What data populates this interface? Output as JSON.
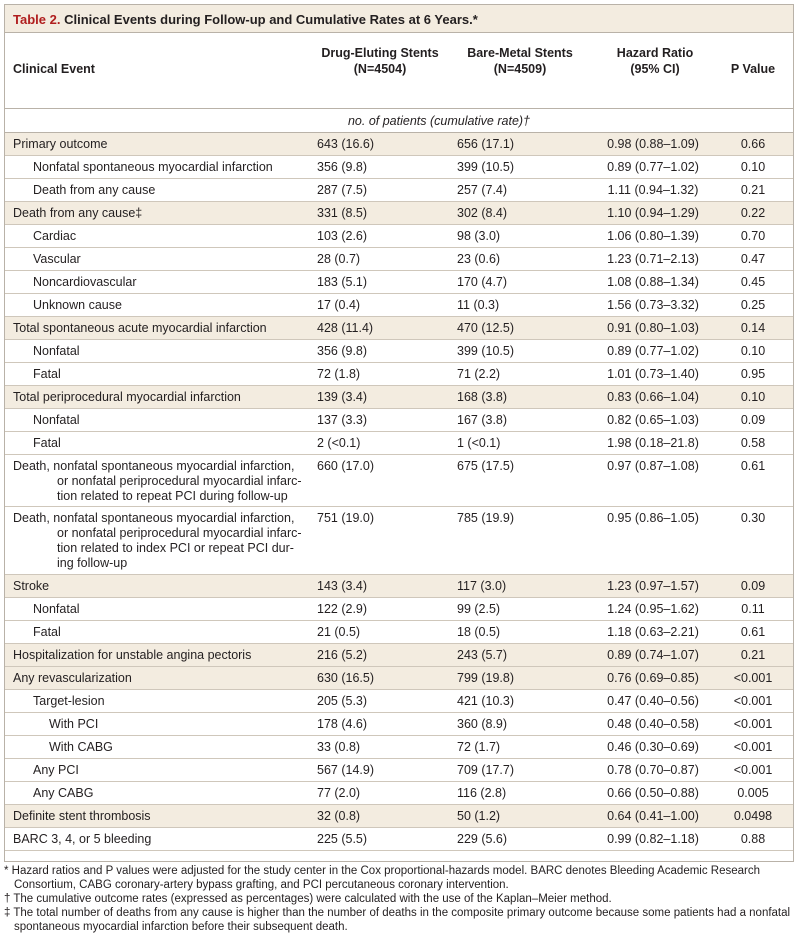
{
  "table": {
    "label": "Table 2.",
    "title": "Clinical Events during Follow-up and Cumulative Rates at 6 Years.*",
    "headers": {
      "event": "Clinical Event",
      "des_line1": "Drug-Eluting Stents",
      "des_line2": "(N=4504)",
      "bms_line1": "Bare-Metal Stents",
      "bms_line2": "(N=4509)",
      "hr_line1": "Hazard Ratio",
      "hr_line2": "(95% CI)",
      "p": "P Value"
    },
    "subheader": "no. of patients (cumulative rate)†",
    "rows": [
      {
        "event": "Primary outcome",
        "des": "643 (16.6)",
        "bms": "656 (17.1)",
        "hr": "0.98 (0.88–1.09)",
        "p": "0.66"
      },
      {
        "event": "Nonfatal spontaneous myocardial infarction",
        "des": "356 (9.8)",
        "bms": "399 (10.5)",
        "hr": "0.89 (0.77–1.02)",
        "p": "0.10"
      },
      {
        "event": "Death from any cause",
        "des": "287 (7.5)",
        "bms": "257 (7.4)",
        "hr": "1.11 (0.94–1.32)",
        "p": "0.21"
      },
      {
        "event": "Death from any cause‡",
        "des": "331 (8.5)",
        "bms": "302 (8.4)",
        "hr": "1.10 (0.94–1.29)",
        "p": "0.22"
      },
      {
        "event": "Cardiac",
        "des": "103 (2.6)",
        "bms": "98 (3.0)",
        "hr": "1.06 (0.80–1.39)",
        "p": "0.70"
      },
      {
        "event": "Vascular",
        "des": "28 (0.7)",
        "bms": "23 (0.6)",
        "hr": "1.23 (0.71–2.13)",
        "p": "0.47"
      },
      {
        "event": "Noncardiovascular",
        "des": "183 (5.1)",
        "bms": "170 (4.7)",
        "hr": "1.08 (0.88–1.34)",
        "p": "0.45"
      },
      {
        "event": "Unknown cause",
        "des": "17 (0.4)",
        "bms": "11 (0.3)",
        "hr": "1.56 (0.73–3.32)",
        "p": "0.25"
      },
      {
        "event": "Total spontaneous acute myocardial infarction",
        "des": "428 (11.4)",
        "bms": "470 (12.5)",
        "hr": "0.91 (0.80–1.03)",
        "p": "0.14"
      },
      {
        "event": "Nonfatal",
        "des": "356 (9.8)",
        "bms": "399 (10.5)",
        "hr": "0.89 (0.77–1.02)",
        "p": "0.10"
      },
      {
        "event": "Fatal",
        "des": "72 (1.8)",
        "bms": "71 (2.2)",
        "hr": "1.01 (0.73–1.40)",
        "p": "0.95"
      },
      {
        "event": "Total periprocedural myocardial infarction",
        "des": "139 (3.4)",
        "bms": "168 (3.8)",
        "hr": "0.83 (0.66–1.04)",
        "p": "0.10"
      },
      {
        "event": "Nonfatal",
        "des": "137 (3.3)",
        "bms": "167 (3.8)",
        "hr": "0.82 (0.65–1.03)",
        "p": "0.09"
      },
      {
        "event": "Fatal",
        "des": "2 (<0.1)",
        "bms": "1 (<0.1)",
        "hr": "1.98 (0.18–21.8)",
        "p": "0.58"
      },
      {
        "event": "Death, nonfatal spontaneous myocardial infarction,",
        "event_cont": "or nonfatal periprocedural myocardial infarc-\ntion related to repeat PCI during follow-up",
        "des": "660 (17.0)",
        "bms": "675 (17.5)",
        "hr": "0.97 (0.87–1.08)",
        "p": "0.61"
      },
      {
        "event": "Death, nonfatal spontaneous myocardial infarction,",
        "event_cont": "or nonfatal periprocedural myocardial infarc-\ntion related to index PCI or repeat PCI dur-\ning follow-up",
        "des": "751 (19.0)",
        "bms": "785 (19.9)",
        "hr": "0.95 (0.86–1.05)",
        "p": "0.30"
      },
      {
        "event": "Stroke",
        "des": "143 (3.4)",
        "bms": "117 (3.0)",
        "hr": "1.23 (0.97–1.57)",
        "p": "0.09"
      },
      {
        "event": "Nonfatal",
        "des": "122 (2.9)",
        "bms": "99 (2.5)",
        "hr": "1.24 (0.95–1.62)",
        "p": "0.11"
      },
      {
        "event": "Fatal",
        "des": "21 (0.5)",
        "bms": "18 (0.5)",
        "hr": "1.18 (0.63–2.21)",
        "p": "0.61"
      },
      {
        "event": "Hospitalization for unstable angina pectoris",
        "des": "216 (5.2)",
        "bms": "243 (5.7)",
        "hr": "0.89 (0.74–1.07)",
        "p": "0.21"
      },
      {
        "event": "Any revascularization",
        "des": "630 (16.5)",
        "bms": "799 (19.8)",
        "hr": "0.76 (0.69–0.85)",
        "p": "<0.001"
      },
      {
        "event": "Target-lesion",
        "des": "205 (5.3)",
        "bms": "421 (10.3)",
        "hr": "0.47 (0.40–0.56)",
        "p": "<0.001"
      },
      {
        "event": "With PCI",
        "des": "178 (4.6)",
        "bms": "360 (8.9)",
        "hr": "0.48 (0.40–0.58)",
        "p": "<0.001"
      },
      {
        "event": "With CABG",
        "des": "33 (0.8)",
        "bms": "72 (1.7)",
        "hr": "0.46 (0.30–0.69)",
        "p": "<0.001"
      },
      {
        "event": "Any PCI",
        "des": "567 (14.9)",
        "bms": "709 (17.7)",
        "hr": "0.78 (0.70–0.87)",
        "p": "<0.001"
      },
      {
        "event": "Any CABG",
        "des": "77 (2.0)",
        "bms": "116 (2.8)",
        "hr": "0.66 (0.50–0.88)",
        "p": "0.005"
      },
      {
        "event": "Definite stent thrombosis",
        "des": "32 (0.8)",
        "bms": "50 (1.2)",
        "hr": "0.64 (0.41–1.00)",
        "p": "0.0498"
      },
      {
        "event": "BARC 3, 4, or 5 bleeding",
        "des": "225 (5.5)",
        "bms": "229 (5.6)",
        "hr": "0.99 (0.82–1.18)",
        "p": "0.88"
      }
    ],
    "footnotes": [
      "* Hazard ratios and P values were adjusted for the study center in the Cox proportional-hazards model. BARC denotes Bleeding Academic Research Consortium, CABG coronary-artery bypass grafting, and PCI percutaneous coronary intervention.",
      "† The cumulative outcome rates (expressed as percentages) were calculated with the use of the Kaplan–Meier method.",
      "‡ The total number of deaths from any cause is higher than the number of deaths in the composite primary outcome because some patients had a nonfatal spontaneous myocardial infarction before their subsequent death."
    ]
  },
  "colors": {
    "title_red": "#b01e1e",
    "shade": "#f3ece0",
    "rule": "#b9b2a8"
  }
}
